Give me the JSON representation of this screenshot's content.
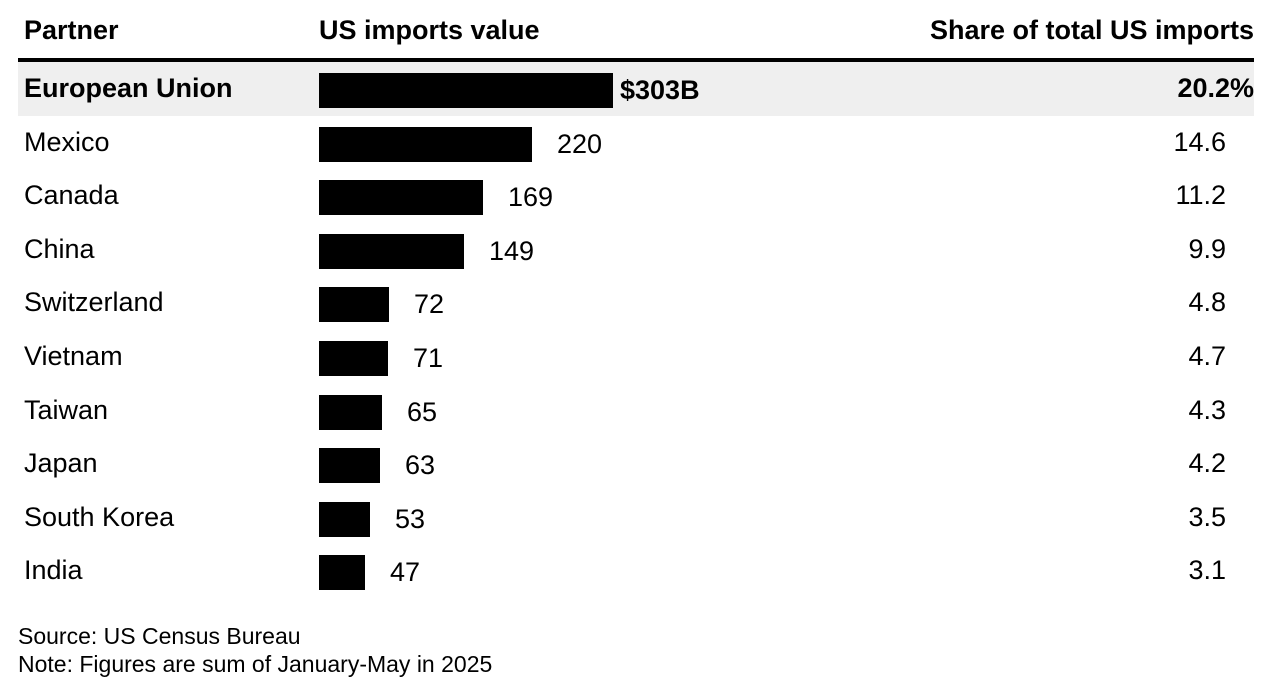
{
  "chart_data": {
    "type": "table",
    "columns": [
      "Partner",
      "US imports value",
      "Share of total US imports"
    ],
    "unit_prefix": "$",
    "unit_suffix": "B",
    "value_max": 303,
    "rows": [
      {
        "partner": "European Union",
        "value": 303,
        "value_label": "$303B",
        "share": "20.2%",
        "highlight": true
      },
      {
        "partner": "Mexico",
        "value": 220,
        "value_label": "220",
        "share": "14.6",
        "highlight": false
      },
      {
        "partner": "Canada",
        "value": 169,
        "value_label": "169",
        "share": "11.2",
        "highlight": false
      },
      {
        "partner": "China",
        "value": 149,
        "value_label": "149",
        "share": "9.9",
        "highlight": false
      },
      {
        "partner": "Switzerland",
        "value": 72,
        "value_label": "72",
        "share": "4.8",
        "highlight": false
      },
      {
        "partner": "Vietnam",
        "value": 71,
        "value_label": "71",
        "share": "4.7",
        "highlight": false
      },
      {
        "partner": "Taiwan",
        "value": 65,
        "value_label": "65",
        "share": "4.3",
        "highlight": false
      },
      {
        "partner": "Japan",
        "value": 63,
        "value_label": "63",
        "share": "4.2",
        "highlight": false
      },
      {
        "partner": "South Korea",
        "value": 53,
        "value_label": "53",
        "share": "3.5",
        "highlight": false
      },
      {
        "partner": "India",
        "value": 47,
        "value_label": "47",
        "share": "3.1",
        "highlight": false
      }
    ],
    "source": "Source: US Census Bureau",
    "note": "Note: Figures are sum of January-May in 2025",
    "colors": {
      "bar": "#000000",
      "highlight_row": "#efefef",
      "rule": "#000000"
    }
  }
}
